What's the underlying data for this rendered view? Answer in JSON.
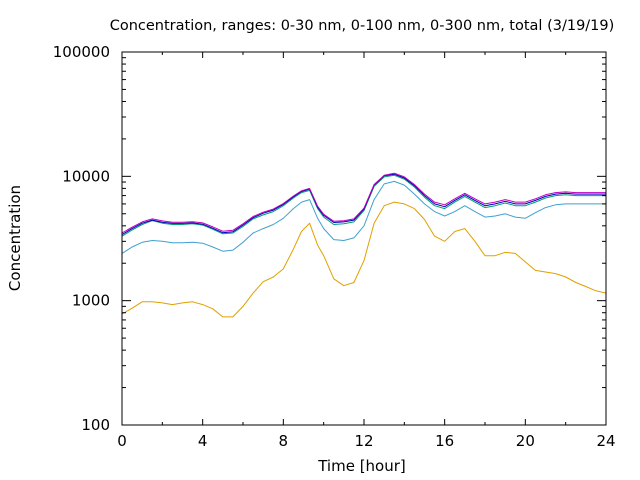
{
  "chart_data": {
    "type": "line",
    "title": "Concentration, ranges: 0-30 nm, 0-100 nm, 0-300 nm, total (3/19/19)",
    "xlabel": "Time [hour]",
    "ylabel": "Concentration",
    "xlim": [
      0,
      24
    ],
    "ylim": [
      100,
      100000
    ],
    "yscale": "log",
    "grid": false,
    "legend": "none",
    "x_ticks": [
      0,
      4,
      8,
      12,
      16,
      20,
      24
    ],
    "x_tick_labels": [
      "0",
      "4",
      "8",
      "12",
      "16",
      "20",
      "24"
    ],
    "y_ticks": [
      100,
      1000,
      10000,
      100000
    ],
    "y_tick_labels": [
      "100",
      "1000",
      "10000",
      "100000"
    ],
    "x": [
      0,
      0.5,
      1,
      1.5,
      2,
      2.5,
      3,
      3.5,
      4,
      4.5,
      5,
      5.5,
      6,
      6.5,
      7,
      7.5,
      8,
      8.5,
      8.9,
      9.3,
      9.7,
      10,
      10.5,
      11,
      11.5,
      12,
      12.5,
      13,
      13.5,
      14,
      14.5,
      15,
      15.5,
      16,
      16.5,
      17,
      17.5,
      18,
      18.5,
      19,
      19.5,
      20,
      20.5,
      21,
      21.5,
      22,
      22.5,
      23,
      23.5,
      24
    ],
    "series": [
      {
        "color": "#e0a000",
        "values": [
          780,
          870,
          980,
          980,
          960,
          930,
          960,
          980,
          930,
          860,
          740,
          740,
          900,
          1150,
          1420,
          1550,
          1800,
          2600,
          3600,
          4200,
          2800,
          2300,
          1500,
          1320,
          1400,
          2100,
          4200,
          5800,
          6200,
          6000,
          5500,
          4500,
          3300,
          3000,
          3600,
          3800,
          3000,
          2300,
          2300,
          2450,
          2400,
          2050,
          1750,
          1700,
          1650,
          1550,
          1400,
          1300,
          1200,
          1150
        ]
      },
      {
        "color": "#40a0d0",
        "values": [
          2400,
          2700,
          2950,
          3050,
          3000,
          2920,
          2920,
          2950,
          2900,
          2700,
          2500,
          2550,
          2950,
          3500,
          3800,
          4100,
          4600,
          5500,
          6200,
          6500,
          4600,
          3800,
          3100,
          3050,
          3200,
          4000,
          6500,
          8700,
          9100,
          8500,
          7200,
          6000,
          5200,
          4800,
          5200,
          5800,
          5200,
          4700,
          4800,
          5000,
          4700,
          4600,
          5100,
          5600,
          5900,
          6000,
          6000,
          6000,
          6000,
          6000
        ]
      },
      {
        "color": "#00a070",
        "values": [
          3300,
          3700,
          4100,
          4400,
          4200,
          4100,
          4100,
          4150,
          4050,
          3750,
          3450,
          3500,
          3950,
          4550,
          4900,
          5200,
          5800,
          6700,
          7400,
          7700,
          5500,
          4700,
          4100,
          4150,
          4300,
          5300,
          8300,
          9900,
          10200,
          9500,
          8200,
          6800,
          5800,
          5500,
          6200,
          6900,
          6200,
          5600,
          5800,
          6100,
          5800,
          5800,
          6200,
          6700,
          7000,
          7100,
          7000,
          7000,
          7000,
          7000
        ]
      },
      {
        "color": "#0000c0",
        "values": [
          3400,
          3800,
          4200,
          4450,
          4280,
          4180,
          4180,
          4220,
          4120,
          3820,
          3520,
          3580,
          4050,
          4650,
          5050,
          5350,
          5950,
          6850,
          7550,
          7900,
          5650,
          4850,
          4250,
          4300,
          4450,
          5450,
          8500,
          10100,
          10400,
          9700,
          8400,
          7000,
          6000,
          5700,
          6400,
          7100,
          6400,
          5800,
          6000,
          6300,
          6000,
          6000,
          6400,
          6900,
          7200,
          7300,
          7200,
          7200,
          7200,
          7200
        ]
      },
      {
        "color": "#c000c0",
        "values": [
          3500,
          3900,
          4300,
          4550,
          4380,
          4280,
          4280,
          4320,
          4220,
          3920,
          3620,
          3680,
          4150,
          4750,
          5150,
          5450,
          6050,
          6950,
          7650,
          8000,
          5750,
          4950,
          4350,
          4400,
          4550,
          5550,
          8600,
          10200,
          10600,
          9900,
          8600,
          7200,
          6200,
          5900,
          6600,
          7300,
          6600,
          6000,
          6200,
          6500,
          6200,
          6200,
          6600,
          7100,
          7400,
          7500,
          7400,
          7400,
          7400,
          7400
        ]
      }
    ]
  }
}
